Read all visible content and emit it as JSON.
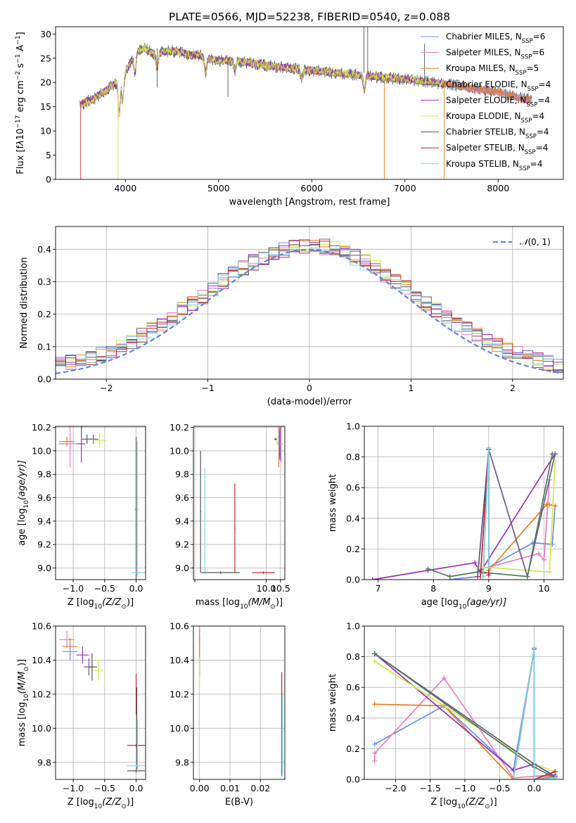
{
  "figure_title": "PLATE=0566, MJD=52238, FIBERID=0540, z=0.088",
  "legend_models": [
    {
      "pre": "Chabrier MILES, N",
      "sub": "SSP",
      "post": "=6",
      "color": "#6b8ee8"
    },
    {
      "pre": "Salpeter MILES, N",
      "sub": "SSP",
      "post": "=6",
      "color": "#e77fbe"
    },
    {
      "pre": "Kroupa MILES, N",
      "sub": "SSP",
      "post": "=5",
      "color": "#e67e22"
    },
    {
      "pre": "Chabrier ELODIE, N",
      "sub": "SSP",
      "post": "=4",
      "color": "#6a5a8a"
    },
    {
      "pre": "Salpeter ELODIE, N",
      "sub": "SSP",
      "post": "=4",
      "color": "#9b30b5"
    },
    {
      "pre": "Kroupa ELODIE, N",
      "sub": "SSP",
      "post": "=4",
      "color": "#cfe84a"
    },
    {
      "pre": "Chabrier STELIB, N",
      "sub": "SSP",
      "post": "=4",
      "color": "#555555"
    },
    {
      "pre": "Salpeter STELIB, N",
      "sub": "SSP",
      "post": "=4",
      "color": "#c0272d"
    },
    {
      "pre": "Kroupa STELIB, N",
      "sub": "SSP",
      "post": "=4",
      "color": "#7fd6e8"
    }
  ],
  "chart_data": [
    {
      "id": "spectrum",
      "type": "line",
      "xlabel": "wavelength [Angstrom, rest frame]",
      "ylabel_html": "Flux [f<tspan font-style='italic'>λ</tspan>10<tspan baseline-shift='super' font-size='9'>−17</tspan> erg cm<tspan baseline-shift='super' font-size='9'>−2</tspan> s<tspan baseline-shift='super' font-size='9'>−1</tspan> A<tspan baseline-shift='super' font-size='9'>−1</tspan>]",
      "xlim": [
        3250,
        8700
      ],
      "ylim": [
        0,
        31.5
      ],
      "xticks": [
        4000,
        5000,
        6000,
        7000,
        8000
      ],
      "yticks": [
        0,
        5,
        10,
        15,
        20,
        25,
        30
      ],
      "grid": false,
      "continuum": [
        [
          3520,
          15.5
        ],
        [
          3650,
          16.5
        ],
        [
          3800,
          18.5
        ],
        [
          3900,
          20
        ],
        [
          3950,
          24
        ],
        [
          4000,
          22
        ],
        [
          4100,
          26
        ],
        [
          4200,
          27
        ],
        [
          4300,
          26
        ],
        [
          4500,
          26.5
        ],
        [
          4800,
          25.5
        ],
        [
          5000,
          24.5
        ],
        [
          5200,
          24.5
        ],
        [
          5500,
          23.5
        ],
        [
          6000,
          22.5
        ],
        [
          6500,
          21.5
        ],
        [
          6800,
          21
        ],
        [
          7100,
          20.5
        ],
        [
          7500,
          19.5
        ],
        [
          8000,
          18
        ],
        [
          8300,
          16.5
        ]
      ]
    },
    {
      "id": "residuals",
      "type": "step",
      "xlabel": "(data-model)/error",
      "ylabel": "Normed distribution",
      "xlim": [
        -2.5,
        2.5
      ],
      "ylim": [
        0,
        0.47
      ],
      "xticks": [
        -2,
        -1,
        0,
        1,
        2
      ],
      "yticks": [
        0,
        0.1,
        0.2,
        0.3,
        0.4
      ],
      "grid": true,
      "legend_loc": "upper right",
      "reference": {
        "label": "N(0,1)",
        "mean": 0,
        "sigma": 1,
        "color": "#5b86e5"
      }
    },
    {
      "id": "age_vs_Z",
      "type": "errorbar",
      "xlabel_pre": "Z [log",
      "xlabel_sub": "10",
      "xlabel_post": "(Z/Z",
      "xlabel_sub2": "⊙",
      "xlabel_end": ")]",
      "ylabel_pre": "age  [log",
      "ylabel_sub": "10",
      "ylabel_post": "(age/yr)]",
      "xlim": [
        -1.28,
        0.15
      ],
      "ylim": [
        8.9,
        10.21
      ],
      "xticks": [
        -1.0,
        -0.5,
        0.0
      ],
      "yticks": [
        9.0,
        9.2,
        9.4,
        9.6,
        9.8,
        10.0,
        10.2
      ],
      "grid": true,
      "points": [
        {
          "x": -1.1,
          "y": 10.08,
          "xe": 0.12,
          "ye": 0.04,
          "c": "#e67e22"
        },
        {
          "x": -1.05,
          "y": 10.06,
          "xe": 0.18,
          "ye": 0.05,
          "c": "#6b8ee8"
        },
        {
          "x": -1.05,
          "y": 10.06,
          "xe": 0.1,
          "ye": 0.2,
          "c": "#e77fbe"
        },
        {
          "x": -0.87,
          "y": 10.06,
          "xe": 0.06,
          "ye": 0.16,
          "c": "#9b30b5"
        },
        {
          "x": -0.78,
          "y": 10.1,
          "xe": 0.08,
          "ye": 0.04,
          "c": "#555555"
        },
        {
          "x": -0.68,
          "y": 10.1,
          "xe": 0.08,
          "ye": 0.04,
          "c": "#6a5a8a"
        },
        {
          "x": -0.58,
          "y": 10.09,
          "xe": 0.1,
          "ye": 0.06,
          "c": "#cfe84a"
        },
        {
          "x": 0.0,
          "y": 9.5,
          "xe": 0.02,
          "ye": 0.62,
          "c": "#555555"
        },
        {
          "x": 0.02,
          "y": 9.5,
          "xe": 0.02,
          "ye": 0.58,
          "c": "#7fd6e8"
        },
        {
          "x": 0.05,
          "y": 8.96,
          "xe": 0.12,
          "ye": 0.01,
          "c": "#7fd6e8"
        }
      ]
    },
    {
      "id": "age_vs_mass",
      "type": "errorbar",
      "xlabel_pre": "mass [log",
      "xlabel_sub": "10",
      "xlabel_post": "(M/M",
      "xlabel_sub2": "⊙",
      "xlabel_end": ")]",
      "xlim": [
        7.45,
        10.65
      ],
      "ylim": [
        8.9,
        10.21
      ],
      "xticks": [
        7.5,
        10.0,
        10.5
      ],
      "xticklabels": [
        "",
        "10.0",
        "10.5"
      ],
      "yticks": [
        9.0,
        9.2,
        9.4,
        9.6,
        9.8,
        10.0,
        10.2
      ],
      "grid": true,
      "points": [
        {
          "x": 10.33,
          "y": 10.1,
          "xe": 0.05,
          "ye": 0.01,
          "c": "#555555"
        },
        {
          "x": 10.38,
          "y": 10.08,
          "xe": 0.05,
          "ye": 0.03,
          "c": "#cfe84a"
        },
        {
          "x": 10.44,
          "y": 10.06,
          "xe": 0.05,
          "ye": 0.2,
          "c": "#e67e22"
        },
        {
          "x": 10.48,
          "y": 10.06,
          "xe": 0.05,
          "ye": 0.14,
          "c": "#9b30b5"
        },
        {
          "x": 10.52,
          "y": 10.06,
          "xe": 0.06,
          "ye": 0.16,
          "c": "#e77fbe"
        },
        {
          "x": 10.45,
          "y": 10.06,
          "xe": 0.02,
          "ye": 0.12,
          "c": "#6b8ee8"
        },
        {
          "x": 7.7,
          "y": 9.48,
          "xe": 0.02,
          "ye": 0.52,
          "c": "#555555"
        },
        {
          "x": 7.85,
          "y": 9.4,
          "xe": 0.02,
          "ye": 0.45,
          "c": "#7fd6e8"
        },
        {
          "x": 8.9,
          "y": 9.34,
          "xe": 0.02,
          "ye": 0.38,
          "c": "#c0272d"
        },
        {
          "x": 8.4,
          "y": 8.96,
          "xe": 0.68,
          "ye": 0.01,
          "c": "#555555"
        },
        {
          "x": 9.9,
          "y": 8.96,
          "xe": 0.4,
          "ye": 0.01,
          "c": "#c0272d"
        }
      ]
    },
    {
      "id": "weight_vs_age",
      "type": "line",
      "xlabel_pre": "age  [log",
      "xlabel_sub": "10",
      "xlabel_post": "(age/yr)]",
      "ylabel": "mass weight",
      "xlim": [
        6.75,
        10.35
      ],
      "ylim": [
        0,
        1.0
      ],
      "xticks": [
        7,
        8,
        9,
        10
      ],
      "yticks": [
        0,
        0.2,
        0.4,
        0.6,
        0.8,
        1.0
      ],
      "grid": true,
      "series": [
        {
          "c": "#6b8ee8",
          "pts": [
            [
              8.3,
              0.0
            ],
            [
              8.8,
              0.02
            ],
            [
              9.0,
              0.85
            ],
            [
              9.0,
              0.08
            ],
            [
              9.8,
              0.24
            ],
            [
              10.15,
              0.23
            ],
            [
              10.2,
              0.48
            ]
          ]
        },
        {
          "c": "#e77fbe",
          "pts": [
            [
              8.9,
              0.05
            ],
            [
              9.0,
              0.85
            ],
            [
              9.0,
              0.08
            ],
            [
              9.9,
              0.17
            ],
            [
              10.0,
              0.13
            ],
            [
              10.1,
              0.65
            ]
          ]
        },
        {
          "c": "#e67e22",
          "pts": [
            [
              8.9,
              0.04
            ],
            [
              9.0,
              0.85
            ],
            [
              9.0,
              0.06
            ],
            [
              10.05,
              0.49
            ],
            [
              10.1,
              0.49
            ],
            [
              10.2,
              0.48
            ]
          ]
        },
        {
          "c": "#9b30b5",
          "pts": [
            [
              6.9,
              0.0
            ],
            [
              7.9,
              0.06
            ],
            [
              8.75,
              0.11
            ],
            [
              8.85,
              0.05
            ],
            [
              10.2,
              0.82
            ]
          ]
        },
        {
          "c": "#cfe84a",
          "pts": [
            [
              8.8,
              0.07
            ],
            [
              9.0,
              0.08
            ],
            [
              10.1,
              0.05
            ],
            [
              10.2,
              0.77
            ]
          ]
        },
        {
          "c": "#6a5a8a",
          "pts": [
            [
              8.8,
              0.02
            ],
            [
              9.0,
              0.85
            ],
            [
              9.7,
              0.02
            ],
            [
              10.2,
              0.82
            ]
          ]
        },
        {
          "c": "#4f7a5a",
          "pts": [
            [
              7.9,
              0.07
            ],
            [
              8.3,
              0.02
            ],
            [
              8.8,
              0.05
            ],
            [
              9.7,
              0.02
            ],
            [
              10.15,
              0.82
            ]
          ]
        },
        {
          "c": "#c0272d",
          "pts": [
            [
              8.85,
              0.02
            ],
            [
              9.0,
              0.85
            ],
            [
              9.0,
              0.03
            ]
          ]
        },
        {
          "c": "#7fd6e8",
          "pts": [
            [
              8.9,
              0.02
            ],
            [
              9.0,
              0.86
            ],
            [
              9.0,
              0.08
            ]
          ]
        }
      ]
    },
    {
      "id": "mass_vs_Z",
      "type": "errorbar",
      "xlabel_pre": "Z [log",
      "xlabel_sub": "10",
      "xlabel_post": "(Z/Z",
      "xlabel_sub2": "⊙",
      "xlabel_end": ")]",
      "ylabel_pre": "mass [log",
      "ylabel_sub": "10",
      "ylabel_post": "(M/M",
      "ylabel_sub2": "⊙",
      "ylabel_end": ")]",
      "xlim": [
        -1.28,
        0.15
      ],
      "ylim": [
        9.7,
        10.6
      ],
      "xticks": [
        -1.0,
        -0.5,
        0.0
      ],
      "yticks": [
        9.8,
        10.0,
        10.2,
        10.4,
        10.6
      ],
      "grid": true,
      "points": [
        {
          "x": -1.1,
          "y": 10.52,
          "xe": 0.12,
          "ye": 0.05,
          "c": "#e77fbe"
        },
        {
          "x": -1.05,
          "y": 10.48,
          "xe": 0.12,
          "ye": 0.05,
          "c": "#e67e22"
        },
        {
          "x": -1.05,
          "y": 10.45,
          "xe": 0.12,
          "ye": 0.05,
          "c": "#6b8ee8"
        },
        {
          "x": -0.85,
          "y": 10.43,
          "xe": 0.1,
          "ye": 0.05,
          "c": "#9b30b5"
        },
        {
          "x": -0.75,
          "y": 10.36,
          "xe": 0.08,
          "ye": 0.05,
          "c": "#6a5a8a"
        },
        {
          "x": -0.7,
          "y": 10.36,
          "xe": 0.08,
          "ye": 0.08,
          "c": "#555555"
        },
        {
          "x": -0.6,
          "y": 10.34,
          "xe": 0.08,
          "ye": 0.06,
          "c": "#cfe84a"
        },
        {
          "x": 0.0,
          "y": 10.2,
          "xe": 0.01,
          "ye": 0.12,
          "c": "#c0272d"
        },
        {
          "x": 0.01,
          "y": 10.0,
          "xe": 0.01,
          "ye": 0.24,
          "c": "#555555"
        },
        {
          "x": 0.0,
          "y": 9.9,
          "xe": 0.14,
          "ye": 0.01,
          "c": "#c0272d"
        },
        {
          "x": 0.0,
          "y": 9.78,
          "xe": 0.14,
          "ye": 0.01,
          "c": "#7fd6e8"
        },
        {
          "x": 0.0,
          "y": 9.75,
          "xe": 0.14,
          "ye": 0.01,
          "c": "#555555"
        },
        {
          "x": 0.02,
          "y": 9.9,
          "xe": 0.01,
          "ye": 0.15,
          "c": "#7fd6e8"
        }
      ]
    },
    {
      "id": "mass_vs_EBV",
      "type": "errorbar",
      "xlabel": "E(B-V)",
      "xlim": [
        -0.002,
        0.028
      ],
      "ylim": [
        9.7,
        10.6
      ],
      "xticks": [
        0.0,
        0.01,
        0.02
      ],
      "yticks": [
        9.8,
        10.0,
        10.2,
        10.4,
        10.6
      ],
      "grid": true,
      "points": [
        {
          "x": 0.0,
          "y": 10.45,
          "xe": 0,
          "ye": 0.15,
          "c": "#e77fbe"
        },
        {
          "x": 0.0,
          "y": 10.42,
          "xe": 0,
          "ye": 0.12,
          "c": "#9b30b5"
        },
        {
          "x": 0.0,
          "y": 10.38,
          "xe": 0,
          "ye": 0.12,
          "c": "#cfe84a"
        },
        {
          "x": 0.0,
          "y": 10.5,
          "xe": 0,
          "ye": 0.08,
          "c": "#e67e22"
        },
        {
          "x": 0.027,
          "y": 10.15,
          "xe": 0,
          "ye": 0.18,
          "c": "#c0272d"
        },
        {
          "x": 0.027,
          "y": 9.97,
          "xe": 0,
          "ye": 0.25,
          "c": "#555555"
        },
        {
          "x": 0.0272,
          "y": 9.95,
          "xe": 0,
          "ye": 0.22,
          "c": "#7fd6e8"
        }
      ]
    },
    {
      "id": "weight_vs_Z",
      "type": "line",
      "xlabel_pre": "Z [log",
      "xlabel_sub": "10",
      "xlabel_post": "(Z/Z",
      "xlabel_sub2": "⊙",
      "xlabel_end": ")]",
      "ylabel": "mass weight",
      "xlim": [
        -2.45,
        0.42
      ],
      "ylim": [
        0,
        1.0
      ],
      "xticks": [
        -2.0,
        -1.5,
        -1.0,
        -0.5,
        0.0
      ],
      "yticks": [
        0,
        0.2,
        0.4,
        0.6,
        0.8,
        1.0
      ],
      "grid": true,
      "series": [
        {
          "c": "#6b8ee8",
          "pts": [
            [
              -2.3,
              0.23
            ],
            [
              -1.3,
              0.48
            ],
            [
              -0.3,
              0.06
            ],
            [
              0.0,
              0.85
            ],
            [
              0.0,
              0.02
            ],
            [
              0.3,
              0.03
            ]
          ]
        },
        {
          "c": "#e77fbe",
          "pts": [
            [
              -2.3,
              0.12
            ],
            [
              -2.3,
              0.17
            ],
            [
              -1.3,
              0.66
            ],
            [
              -0.3,
              0.01
            ],
            [
              0.0,
              0.02
            ],
            [
              0.3,
              0.02
            ]
          ]
        },
        {
          "c": "#e67e22",
          "pts": [
            [
              -2.3,
              0.49
            ],
            [
              -1.3,
              0.48
            ],
            [
              -0.3,
              0.0
            ],
            [
              0.0,
              0.0
            ],
            [
              0.3,
              0.02
            ]
          ]
        },
        {
          "c": "#9b30b5",
          "pts": [
            [
              -2.3,
              0.82
            ],
            [
              -0.3,
              0.06
            ],
            [
              0.0,
              0.1
            ],
            [
              0.3,
              0.02
            ]
          ]
        },
        {
          "c": "#cfe84a",
          "pts": [
            [
              -2.3,
              0.77
            ],
            [
              0.0,
              0.1
            ],
            [
              0.3,
              0.05
            ]
          ]
        },
        {
          "c": "#6a5a8a",
          "pts": [
            [
              -2.3,
              0.82
            ],
            [
              0.0,
              0.1
            ],
            [
              0.3,
              0.02
            ]
          ]
        },
        {
          "c": "#4f7a5a",
          "pts": [
            [
              -2.3,
              0.82
            ],
            [
              0.0,
              0.08
            ],
            [
              0.3,
              0.01
            ]
          ]
        },
        {
          "c": "#c0272d",
          "pts": [
            [
              -0.3,
              0.0
            ],
            [
              0.0,
              0.85
            ],
            [
              0.0,
              0.0
            ],
            [
              0.3,
              0.05
            ]
          ]
        },
        {
          "c": "#7fd6e8",
          "pts": [
            [
              -0.3,
              0.0
            ],
            [
              0.0,
              0.86
            ],
            [
              0.0,
              0.0
            ],
            [
              0.3,
              0.01
            ]
          ]
        }
      ]
    }
  ]
}
